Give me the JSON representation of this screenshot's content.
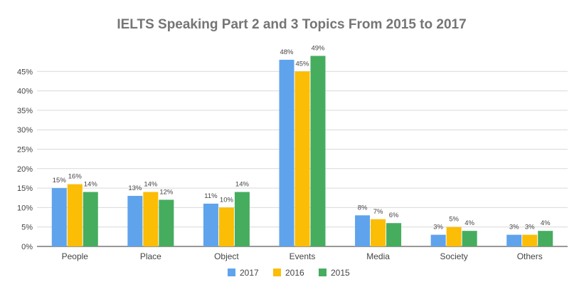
{
  "chart_data": {
    "type": "bar",
    "title": "IELTS Speaking Part 2 and 3 Topics From 2015 to 2017",
    "xlabel": "",
    "ylabel": "",
    "ylim": [
      0,
      50
    ],
    "y_ticks": [
      "0%",
      "5%",
      "10%",
      "15%",
      "20%",
      "25%",
      "30%",
      "35%",
      "40%",
      "45%"
    ],
    "y_tick_values": [
      0,
      5,
      10,
      15,
      20,
      25,
      30,
      35,
      40,
      45
    ],
    "grid": true,
    "legend_position": "bottom",
    "categories": [
      "People",
      "Place",
      "Object",
      "Events",
      "Media",
      "Society",
      "Others"
    ],
    "series": [
      {
        "name": "2017",
        "color": "#5fa3ec",
        "values": [
          15,
          13,
          11,
          48,
          8,
          3,
          3
        ],
        "labels": [
          "15%",
          "13%",
          "11%",
          "48%",
          "8%",
          "3%",
          "3%"
        ]
      },
      {
        "name": "2016",
        "color": "#fbbd05",
        "values": [
          16,
          14,
          10,
          45,
          7,
          5,
          3
        ],
        "labels": [
          "16%",
          "14%",
          "10%",
          "45%",
          "7%",
          "5%",
          "3%"
        ]
      },
      {
        "name": "2015",
        "color": "#46ad5f",
        "values": [
          14,
          12,
          14,
          49,
          6,
          4,
          4
        ],
        "labels": [
          "14%",
          "12%",
          "14%",
          "49%",
          "6%",
          "4%",
          "4%"
        ]
      }
    ]
  }
}
